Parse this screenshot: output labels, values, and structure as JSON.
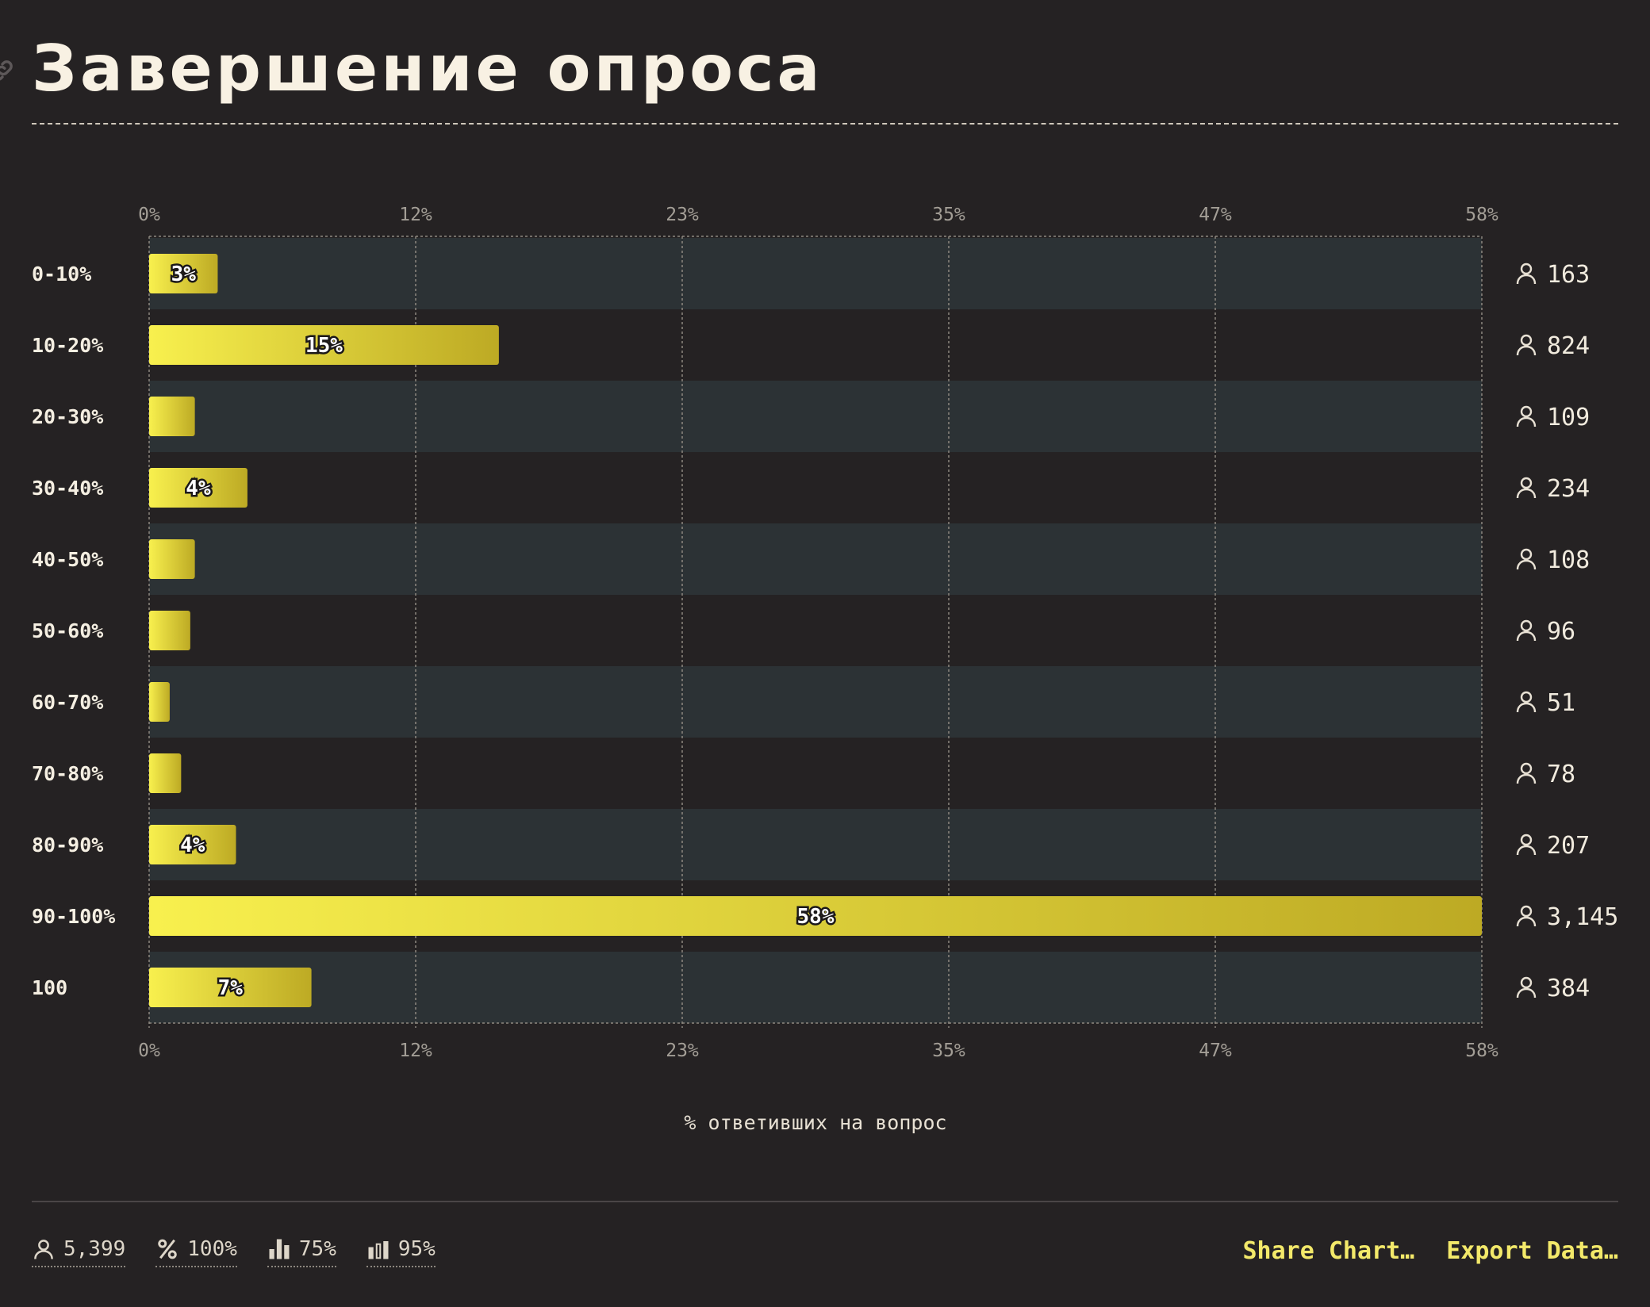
{
  "title": "Завершение опроса",
  "chart_data": {
    "type": "bar",
    "orientation": "horizontal",
    "categories": [
      "0-10%",
      "10-20%",
      "20-30%",
      "30-40%",
      "40-50%",
      "50-60%",
      "60-70%",
      "70-80%",
      "80-90%",
      "90-100%",
      "100"
    ],
    "values": [
      3.0,
      15.3,
      2.0,
      4.3,
      2.0,
      1.8,
      0.9,
      1.4,
      3.8,
      58.3,
      7.1
    ],
    "value_labels": [
      "3%",
      "15%",
      "",
      "4%",
      "",
      "",
      "",
      "",
      "4%",
      "58%",
      "7%"
    ],
    "counts": [
      "163",
      "824",
      "109",
      "234",
      "108",
      "96",
      "51",
      "78",
      "207",
      "3,145",
      "384"
    ],
    "x_ticks": [
      "0%",
      "12%",
      "23%",
      "35%",
      "47%",
      "58%"
    ],
    "xlim": [
      0,
      58.3
    ],
    "xlabel": "% ответивших на вопрос",
    "grid": true,
    "colors": {
      "bar_start": "#f8f04e",
      "bar_end": "#bdaa24",
      "row_band": "#2c3235",
      "background": "#252223"
    }
  },
  "footer": {
    "stats": [
      {
        "icon": "person-icon",
        "value": "5,399"
      },
      {
        "icon": "percent-icon",
        "value": "100%"
      },
      {
        "icon": "bar-median-icon",
        "value": "75%"
      },
      {
        "icon": "bar-outline-icon",
        "value": "95%"
      }
    ],
    "share_label": "Share Chart…",
    "export_label": "Export Data…"
  }
}
